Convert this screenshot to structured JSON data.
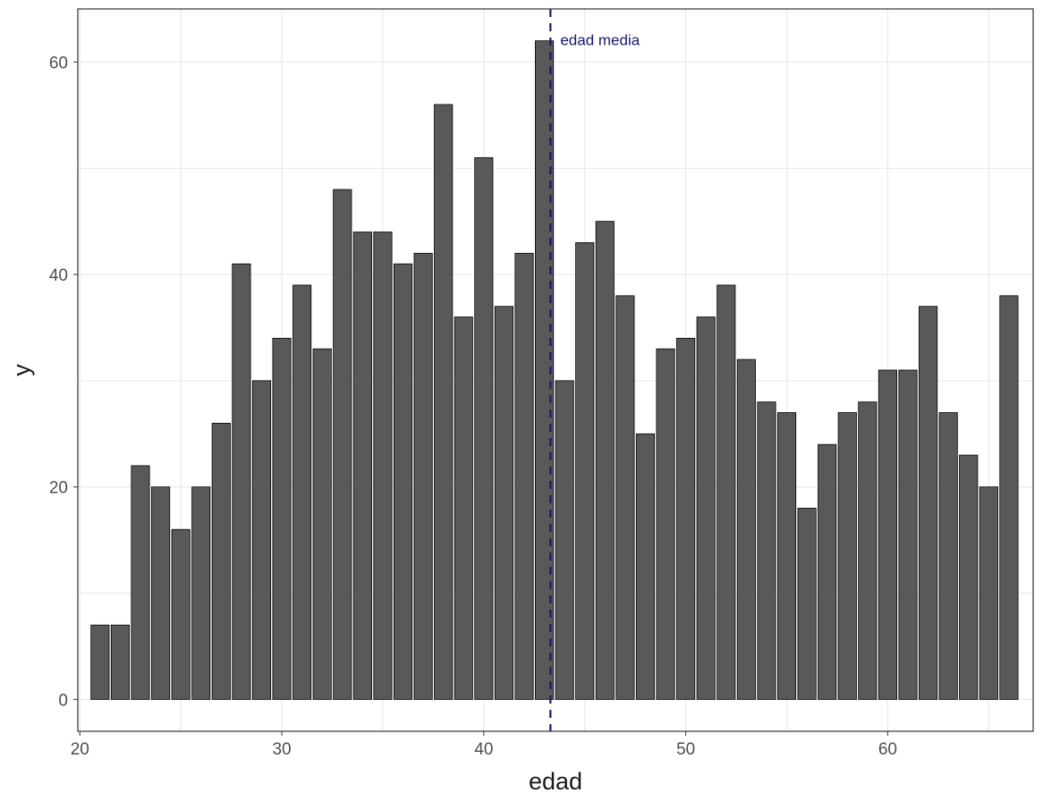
{
  "chart_data": {
    "type": "bar",
    "title": "",
    "xlabel": "edad",
    "ylabel": "y",
    "x": [
      21,
      22,
      23,
      24,
      25,
      26,
      27,
      28,
      29,
      30,
      31,
      32,
      33,
      34,
      35,
      36,
      37,
      38,
      39,
      40,
      41,
      42,
      43,
      44,
      45,
      46,
      47,
      48,
      49,
      50,
      51,
      52,
      53,
      54,
      55,
      56,
      57,
      58,
      59,
      60,
      61,
      62,
      63,
      64,
      65,
      66
    ],
    "values": [
      7,
      7,
      22,
      20,
      16,
      20,
      26,
      41,
      30,
      34,
      39,
      33,
      48,
      44,
      44,
      41,
      42,
      56,
      36,
      51,
      37,
      42,
      62,
      30,
      43,
      45,
      38,
      25,
      33,
      34,
      36,
      39,
      32,
      28,
      27,
      18,
      24,
      27,
      28,
      31,
      31,
      37,
      27,
      23,
      20,
      38
    ],
    "xlim": [
      19.9,
      67.2
    ],
    "ylim": [
      -3,
      65
    ],
    "xticks": [
      20,
      30,
      40,
      50,
      60
    ],
    "xtick_labels": [
      "20",
      "30",
      "40",
      "50",
      "60"
    ],
    "yticks": [
      0,
      20,
      40,
      60
    ],
    "ytick_labels": [
      "0",
      "20",
      "40",
      "60"
    ],
    "grid": true,
    "legend": "none",
    "bar_color": "#595959",
    "bar_outline": "#000000",
    "mean_line": {
      "value": 43.3,
      "label": "edad media",
      "color": "#191970",
      "style": "dashed"
    }
  }
}
